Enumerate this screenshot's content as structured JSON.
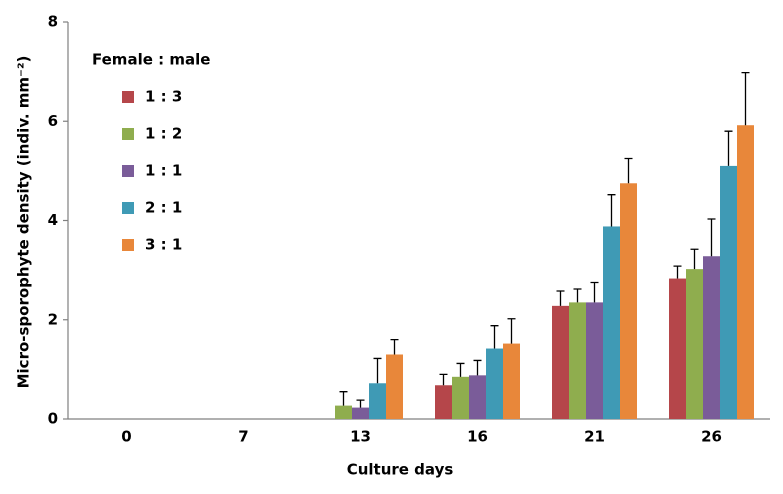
{
  "chart_data": {
    "type": "bar",
    "x_label": "Culture days",
    "y_label": "Micro-sporophyte density (indiv. mm⁻²)",
    "legend_title": "Female : male",
    "legend_position": "upper left",
    "categories": [
      "0",
      "7",
      "13",
      "16",
      "21",
      "26"
    ],
    "series": [
      {
        "name": "1 : 3",
        "color": "#b5464a",
        "values": [
          0,
          0,
          0,
          0.68,
          2.28,
          2.83
        ],
        "errors": [
          null,
          null,
          null,
          0.22,
          0.3,
          0.25
        ]
      },
      {
        "name": "1 : 2",
        "color": "#8fad4e",
        "values": [
          0,
          0,
          0.27,
          0.85,
          2.35,
          3.02
        ],
        "errors": [
          null,
          null,
          0.28,
          0.27,
          0.27,
          0.4
        ]
      },
      {
        "name": "1 : 1",
        "color": "#7a5c99",
        "values": [
          0,
          0,
          0.23,
          0.88,
          2.35,
          3.28
        ],
        "errors": [
          null,
          null,
          0.15,
          0.3,
          0.4,
          0.75
        ]
      },
      {
        "name": "2 : 1",
        "color": "#3f9ab5",
        "values": [
          0,
          0,
          0.72,
          1.42,
          3.88,
          5.1
        ],
        "errors": [
          null,
          null,
          0.5,
          0.46,
          0.64,
          0.7
        ]
      },
      {
        "name": "3 : 1",
        "color": "#e8873a",
        "values": [
          0,
          0,
          1.3,
          1.52,
          4.75,
          5.92
        ],
        "errors": [
          null,
          null,
          0.3,
          0.5,
          0.5,
          1.06
        ]
      }
    ],
    "ylim": [
      0,
      8
    ],
    "yticks": [
      0,
      2,
      4,
      6,
      8
    ],
    "grid": false
  }
}
